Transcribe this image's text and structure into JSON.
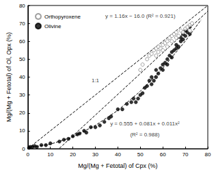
{
  "chart_data": {
    "type": "scatter",
    "x_label": "Mg/(Mg + Fetotal) of Cpx (%)",
    "y_label": "Mg/(Mg + Fetotal) of Ol, Opx (%)",
    "xlim": [
      0,
      80
    ],
    "ylim": [
      0,
      80
    ],
    "xticks": [
      0,
      10,
      20,
      30,
      40,
      50,
      60,
      70,
      80
    ],
    "yticks": [
      0,
      10,
      20,
      30,
      40,
      50,
      60,
      70,
      80
    ],
    "grid": false,
    "legend": "upper left",
    "series": [
      {
        "name": "Orthopyroxene",
        "type": "scatter",
        "marker": "open_circle",
        "color": "#888888",
        "x": [
          50,
          51,
          53,
          54,
          55,
          56,
          57,
          57,
          58,
          58,
          59,
          60,
          60,
          61,
          62,
          62,
          63,
          64,
          64,
          65,
          66,
          66,
          67,
          68,
          69,
          70,
          71,
          72,
          72,
          73
        ],
        "values": [
          44,
          47,
          50,
          52,
          53,
          55,
          52,
          56,
          54,
          57,
          56,
          55,
          58,
          59,
          57,
          60,
          62,
          60,
          63,
          64,
          62,
          65,
          63,
          66,
          65,
          67,
          68,
          66,
          69,
          70
        ]
      },
      {
        "name": "Olivine",
        "type": "scatter",
        "marker": "circle",
        "color": "#000000",
        "x": [
          0.5,
          1,
          2,
          3,
          4,
          6,
          8,
          10,
          14,
          16,
          18,
          20,
          22,
          23,
          25,
          26,
          28,
          30,
          32,
          34,
          36,
          37,
          40,
          42,
          44,
          46,
          47,
          48,
          49,
          50,
          51,
          52,
          53,
          54,
          55,
          55,
          56,
          57,
          57,
          58,
          59,
          60,
          60,
          61,
          62,
          62,
          63,
          64,
          64,
          65,
          66,
          66,
          67,
          68,
          68,
          69,
          69,
          70,
          70,
          71,
          72,
          72
        ],
        "values": [
          0.5,
          1,
          1,
          1.5,
          1,
          2,
          2,
          3,
          4,
          5,
          5.5,
          7,
          8,
          8.5,
          10,
          9,
          12,
          12,
          13,
          15,
          17,
          18,
          22,
          22,
          25,
          26,
          28,
          26,
          28,
          30,
          31,
          34,
          35,
          38,
          36,
          40,
          38,
          40,
          44,
          42,
          45,
          44,
          47,
          48,
          47,
          50,
          52,
          51,
          54,
          55,
          56,
          58,
          57,
          60,
          62,
          61,
          64,
          63,
          66,
          65,
          68,
          64
        ]
      },
      {
        "name": "1:1",
        "type": "line",
        "line_style": "dashed",
        "color": "#000000",
        "x": [
          0,
          80
        ],
        "values": [
          0,
          80
        ]
      },
      {
        "name": "y = 1.16x − 16.0 (R² = 0.921)",
        "type": "line",
        "line_style": "dashed",
        "color": "#000000",
        "x": [
          14,
          80
        ],
        "values": [
          0.2,
          76.8
        ]
      },
      {
        "name": "y = 0.555 + 0.081x + 0.011x² (R² = 0.988)",
        "type": "line",
        "line_style": "dashed",
        "color": "#000000",
        "x": [
          0,
          10,
          20,
          30,
          40,
          50,
          60,
          70,
          77
        ],
        "values": [
          0.6,
          2.5,
          6.6,
          13,
          21.4,
          32.1,
          45,
          60.1,
          72
        ]
      }
    ],
    "annotations": [
      {
        "text": "y = 1.16x − 16.0 (R² = 0.921)",
        "x": 50,
        "y": 74
      },
      {
        "text": "1:1",
        "x": 30,
        "y": 38
      },
      {
        "text": "y = 0.555 + 0.081x + 0.011x²",
        "x": 52,
        "y": 14
      },
      {
        "text": "(R² = 0.988)",
        "x": 52,
        "y": 8
      }
    ]
  }
}
